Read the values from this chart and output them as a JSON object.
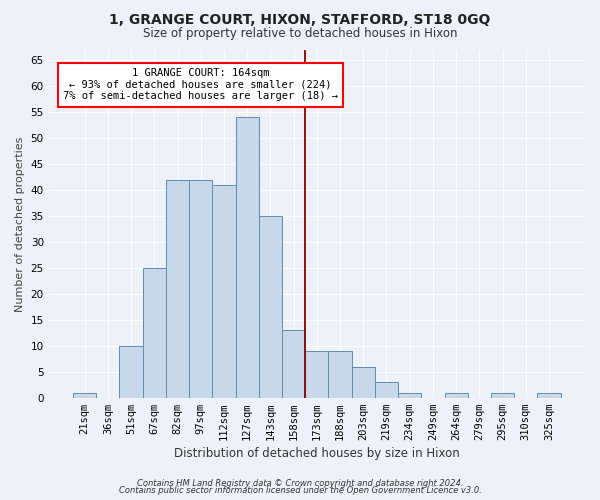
{
  "title": "1, GRANGE COURT, HIXON, STAFFORD, ST18 0GQ",
  "subtitle": "Size of property relative to detached houses in Hixon",
  "xlabel": "Distribution of detached houses by size in Hixon",
  "ylabel": "Number of detached properties",
  "categories": [
    "21sqm",
    "36sqm",
    "51sqm",
    "67sqm",
    "82sqm",
    "97sqm",
    "112sqm",
    "127sqm",
    "143sqm",
    "158sqm",
    "173sqm",
    "188sqm",
    "203sqm",
    "219sqm",
    "234sqm",
    "249sqm",
    "264sqm",
    "279sqm",
    "295sqm",
    "310sqm",
    "325sqm"
  ],
  "values": [
    1,
    0,
    10,
    25,
    42,
    42,
    41,
    54,
    35,
    13,
    9,
    9,
    6,
    3,
    1,
    0,
    1,
    0,
    1,
    0,
    1
  ],
  "bar_color": "#c8d8e8",
  "bar_edge_color": "#5b8db8",
  "red_line_index": 10,
  "annotation_text_line1": "1 GRANGE COURT: 164sqm",
  "annotation_text_line2": "← 93% of detached houses are smaller (224)",
  "annotation_text_line3": "7% of semi-detached houses are larger (18) →",
  "ylim_max": 67,
  "yticks": [
    0,
    5,
    10,
    15,
    20,
    25,
    30,
    35,
    40,
    45,
    50,
    55,
    60,
    65
  ],
  "footer1": "Contains HM Land Registry data © Crown copyright and database right 2024.",
  "footer2": "Contains public sector information licensed under the Open Government Licence v3.0.",
  "bg_color": "#eef2f8",
  "grid_color": "#ffffff",
  "title_fontsize": 10,
  "subtitle_fontsize": 8.5,
  "xlabel_fontsize": 8.5,
  "ylabel_fontsize": 8,
  "tick_fontsize": 7.5,
  "annot_fontsize": 7.5,
  "footer_fontsize": 6
}
